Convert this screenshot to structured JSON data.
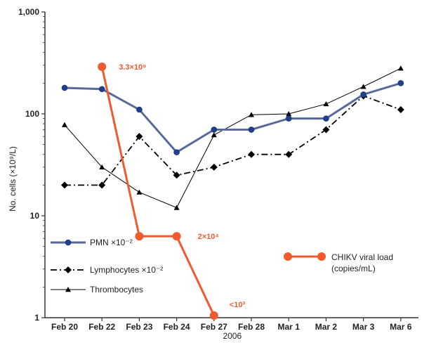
{
  "chart_data": {
    "type": "line",
    "yscale": "log",
    "ylim": [
      1,
      1000
    ],
    "ylabel": "No. cells (×10⁹/L)",
    "xlabel": "2006",
    "categories": [
      "Feb 20",
      "Feb 22",
      "Feb 23",
      "Feb 24",
      "Feb 27",
      "Feb 28",
      "Mar 1",
      "Mar 2",
      "Mar 3",
      "Mar 6"
    ],
    "yticks": [
      {
        "value": 1,
        "label": "1"
      },
      {
        "value": 10,
        "label": "10"
      },
      {
        "value": 100,
        "label": "100"
      },
      {
        "value": 1000,
        "label": "1,000"
      }
    ],
    "series": [
      {
        "key": "pmn",
        "name": "PMN ×10⁻²",
        "color": "#1f3f8f",
        "values": [
          180,
          175,
          110,
          42,
          70,
          70,
          90,
          90,
          155,
          200
        ]
      },
      {
        "key": "lymph",
        "name": "Lymphocytes ×10⁻²",
        "color": "#000000",
        "values": [
          20,
          20,
          60,
          25,
          30,
          40,
          40,
          70,
          150,
          110
        ]
      },
      {
        "key": "thromb",
        "name": "Thrombocytes",
        "color": "#000000",
        "values": [
          78,
          30,
          17,
          12,
          62,
          98,
          100,
          125,
          185,
          280
        ]
      },
      {
        "key": "viral",
        "name": "CHIKV viral load (copies/mL)",
        "color": "#ef5a2f",
        "values": [
          null,
          290,
          6.3,
          6.3,
          1.05,
          null,
          null,
          null,
          null,
          null
        ]
      }
    ],
    "annotations": [
      {
        "text": "3.3×10⁹",
        "category": "Feb 22",
        "color": "#ef5a2f"
      },
      {
        "text": "2×10⁴",
        "category": "Feb 24",
        "color": "#ef5a2f"
      },
      {
        "text": "<10³",
        "category": "Feb 27",
        "color": "#ef5a2f"
      }
    ],
    "legend": {
      "left_entries": [
        "pmn",
        "lymph",
        "thromb"
      ],
      "right_entries": [
        "viral"
      ],
      "viral_line1": "CHIKV viral load",
      "viral_line2": "(copies/mL)"
    },
    "grid": false
  }
}
